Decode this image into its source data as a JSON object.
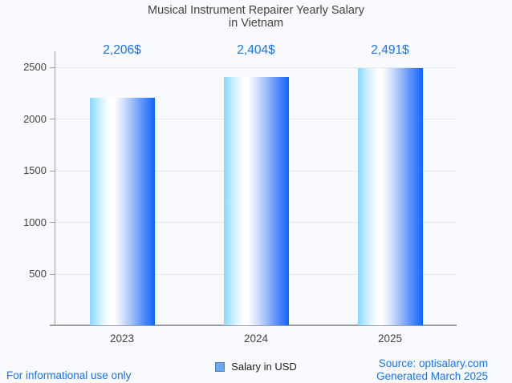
{
  "chart_data": {
    "type": "bar",
    "title": "Musical Instrument Repairer Yearly Salary in Vietnam",
    "title_line1": "Musical Instrument Repairer Yearly Salary",
    "title_line2": "in Vietnam",
    "categories": [
      "2023",
      "2024",
      "2025"
    ],
    "series": [
      {
        "name": "Salary in USD",
        "values": [
          2206,
          2404,
          2491
        ]
      }
    ],
    "values": [
      2206,
      2404,
      2491
    ],
    "value_labels": [
      "2,206$",
      "2,404$",
      "2,491$"
    ],
    "xlabel": "",
    "ylabel": "",
    "ylim": [
      0,
      2500
    ],
    "yticks": [
      500,
      1000,
      1500,
      2000,
      2500
    ],
    "ytick_labels_top_to_bottom": [
      "2500",
      "2000",
      "1500",
      "1000",
      "500"
    ],
    "grid": true,
    "legend": {
      "label": "Salary in USD",
      "position": "bottom"
    }
  },
  "footer": {
    "left": "For informational use only",
    "source": "Source: optisalary.com",
    "generated": "Generated March 2025"
  },
  "colors": {
    "background": "#f8fafd",
    "accent_blue": "#1a73e8",
    "title_gray": "#424242",
    "gridline": "#e6e6e6",
    "axis": "#9e9e9e",
    "bar_gradient_left": "#87d8fc",
    "bar_gradient_mid": "#ffffff",
    "bar_gradient_right": "#0f65fc",
    "legend_swatch_fill": "#6da9ea",
    "legend_swatch_border": "#4181c2"
  }
}
